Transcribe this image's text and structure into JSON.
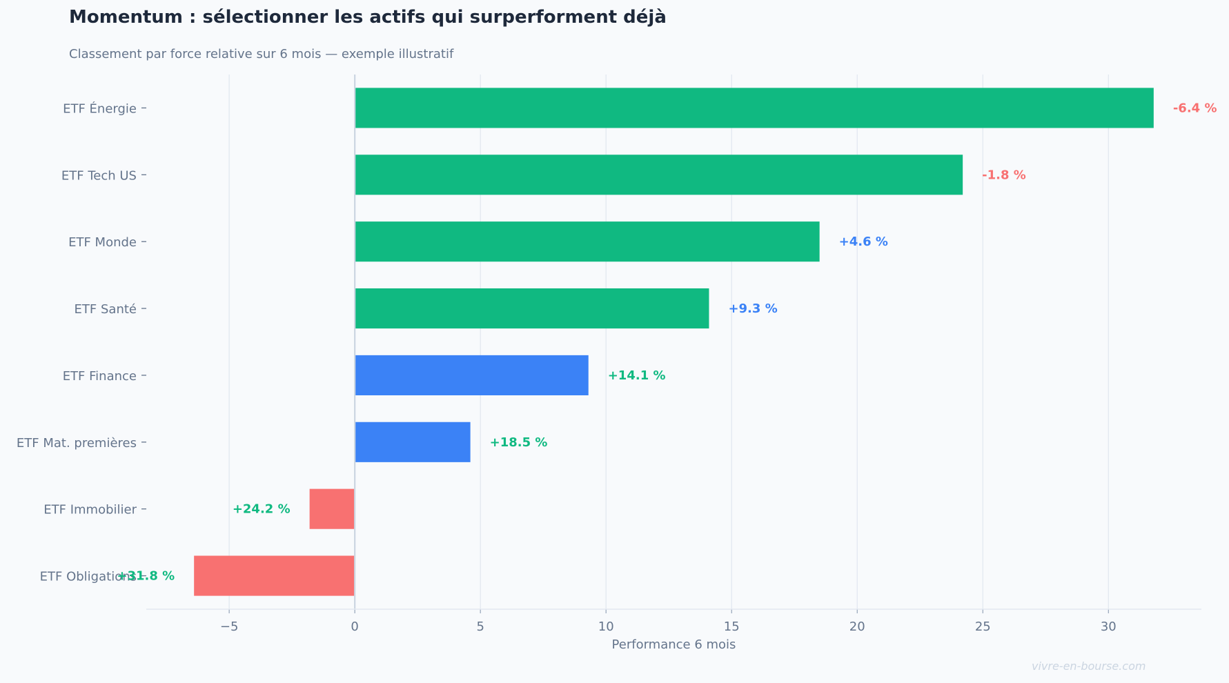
{
  "chart_data": {
    "type": "bar",
    "orientation": "horizontal",
    "title": "Momentum : sélectionner les actifs qui surperforment déjà",
    "subtitle": "Classement par force relative sur 6 mois — exemple illustratif",
    "xlabel": "Performance 6 mois",
    "ylabel": "",
    "xlim": [
      -8.3,
      33.7
    ],
    "xticks": [
      -5,
      0,
      5,
      10,
      15,
      20,
      25,
      30
    ],
    "xtick_labels": [
      "−5",
      "0",
      "5",
      "10",
      "15",
      "20",
      "25",
      "30"
    ],
    "grid": "vertical",
    "categories": [
      "ETF Énergie",
      "ETF Tech US",
      "ETF Monde",
      "ETF Santé",
      "ETF Finance",
      "ETF Mat. premières",
      "ETF Immobilier",
      "ETF Obligations"
    ],
    "values": [
      31.8,
      24.2,
      18.5,
      14.1,
      9.3,
      4.6,
      -1.8,
      -6.4
    ],
    "bar_colors": [
      "#10b981",
      "#10b981",
      "#10b981",
      "#10b981",
      "#3b82f6",
      "#3b82f6",
      "#f87171",
      "#f87171"
    ],
    "data_labels": [
      "-6.4 %",
      "-1.8 %",
      "+4.6 %",
      "+9.3 %",
      "+14.1 %",
      "+18.5 %",
      "+24.2 %",
      "+31.8 %"
    ],
    "data_label_colors": [
      "#f87171",
      "#f87171",
      "#3b82f6",
      "#3b82f6",
      "#10b981",
      "#10b981",
      "#10b981",
      "#10b981"
    ]
  },
  "watermark": "vivre-en-bourse.com"
}
